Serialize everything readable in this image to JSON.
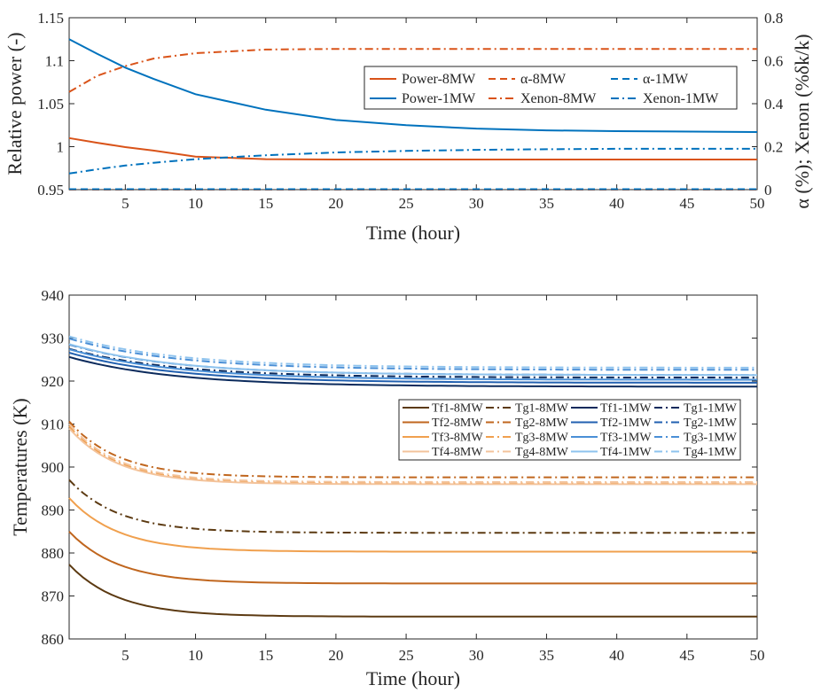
{
  "chart_data": [
    {
      "type": "line",
      "xlabel": "Time (hour)",
      "ylabel": "Relative power (-)",
      "ylabel_right": "α (%); Xenon (%δk/k)",
      "xlim": [
        1,
        50
      ],
      "ylim": [
        0.95,
        1.15
      ],
      "ylim_right": [
        0,
        0.8
      ],
      "xticks": [
        5,
        10,
        15,
        20,
        25,
        30,
        35,
        40,
        45,
        50
      ],
      "yticks": [
        "0.95",
        "1",
        "1.05",
        "1.1",
        "1.15"
      ],
      "yticks_right": [
        "0",
        "0.2",
        "0.4",
        "0.6",
        "0.8"
      ],
      "legend_position": "top-right",
      "series": [
        {
          "name": "Power-8MW",
          "axis": "left",
          "style": "solid",
          "color": "#D95319",
          "x": [
            1,
            3,
            5,
            7,
            10,
            15,
            20,
            30,
            40,
            50
          ],
          "y": [
            1.01,
            1.0045,
            0.9995,
            0.9955,
            0.9885,
            0.9855,
            0.985,
            0.985,
            0.985,
            0.985
          ]
        },
        {
          "name": "α-8MW",
          "axis": "left",
          "style": "dashed",
          "color": "#D95319",
          "x": [
            1,
            50
          ],
          "y": [
            0.95,
            0.95
          ]
        },
        {
          "name": "α-1MW",
          "axis": "left",
          "style": "dashed",
          "color": "#0072BD",
          "x": [
            1,
            50
          ],
          "y": [
            0.9505,
            0.9505
          ]
        },
        {
          "name": "Power-1MW",
          "axis": "left",
          "style": "solid",
          "color": "#0072BD",
          "x": [
            1,
            3,
            5,
            7,
            10,
            15,
            20,
            25,
            30,
            35,
            40,
            50
          ],
          "y": [
            1.125,
            1.108,
            1.092,
            1.079,
            1.061,
            1.043,
            1.031,
            1.025,
            1.021,
            1.019,
            1.018,
            1.017
          ]
        },
        {
          "name": "Xenon-8MW",
          "axis": "right",
          "style": "dashdot",
          "color": "#D95319",
          "x": [
            1,
            3,
            5,
            7,
            10,
            15,
            20,
            25,
            30,
            40,
            50
          ],
          "y": [
            0.455,
            0.53,
            0.575,
            0.61,
            0.635,
            0.652,
            0.655,
            0.655,
            0.655,
            0.655,
            0.655
          ]
        },
        {
          "name": "Xenon-1MW",
          "axis": "right",
          "style": "dashdot",
          "color": "#0072BD",
          "x": [
            1,
            3,
            5,
            7,
            10,
            15,
            20,
            25,
            30,
            35,
            40,
            45,
            50
          ],
          "y": [
            0.075,
            0.095,
            0.112,
            0.125,
            0.142,
            0.16,
            0.173,
            0.18,
            0.185,
            0.188,
            0.19,
            0.19,
            0.19
          ]
        }
      ],
      "legend_order": [
        0,
        1,
        2,
        3,
        4,
        5
      ]
    },
    {
      "type": "line",
      "xlabel": "Time (hour)",
      "ylabel": "Temperatures (K)",
      "xlim": [
        1,
        50
      ],
      "ylim": [
        860,
        940
      ],
      "xticks": [
        5,
        10,
        15,
        20,
        25,
        30,
        35,
        40,
        45,
        50
      ],
      "yticks": [
        "860",
        "870",
        "880",
        "890",
        "900",
        "910",
        "920",
        "930",
        "940"
      ],
      "legend_position": "right",
      "series": [
        {
          "name": "Tf1-8MW",
          "style": "solid",
          "color": "#5C3A12",
          "start": 877.3,
          "end": 865.2,
          "tau": 3.5
        },
        {
          "name": "Tg1-8MW",
          "style": "dashdot",
          "color": "#5C3A12",
          "start": 897.0,
          "end": 884.7,
          "tau": 3.5
        },
        {
          "name": "Tf1-1MW",
          "style": "solid",
          "color": "#0B2A5C",
          "start": 925.6,
          "end": 918.7,
          "tau": 7.5
        },
        {
          "name": "Tg1-1MW",
          "style": "dashdot",
          "color": "#0B2A5C",
          "start": 927.5,
          "end": 920.8,
          "tau": 7.5
        },
        {
          "name": "Tf2-8MW",
          "style": "solid",
          "color": "#C0661E",
          "start": 885.0,
          "end": 872.9,
          "tau": 3.5
        },
        {
          "name": "Tg2-8MW",
          "style": "dashdot",
          "color": "#C0661E",
          "start": 910.6,
          "end": 897.6,
          "tau": 3.5
        },
        {
          "name": "Tf2-1MW",
          "style": "solid",
          "color": "#2160B0",
          "start": 926.6,
          "end": 919.6,
          "tau": 7.5
        },
        {
          "name": "Tg2-1MW",
          "style": "dashdot",
          "color": "#2160B0",
          "start": 928.5,
          "end": 921.4,
          "tau": 7.5
        },
        {
          "name": "Tf3-8MW",
          "style": "solid",
          "color": "#F0A04E",
          "start": 892.8,
          "end": 880.3,
          "tau": 3.5
        },
        {
          "name": "Tg3-8MW",
          "style": "dashdot",
          "color": "#F0A04E",
          "start": 909.5,
          "end": 896.2,
          "tau": 3.5
        },
        {
          "name": "Tf3-1MW",
          "style": "solid",
          "color": "#4A8FD6",
          "start": 927.4,
          "end": 920.3,
          "tau": 7.5
        },
        {
          "name": "Tg3-1MW",
          "style": "dashdot",
          "color": "#4A8FD6",
          "start": 929.9,
          "end": 922.6,
          "tau": 7.5
        },
        {
          "name": "Tf4-8MW",
          "style": "solid",
          "color": "#F3C39B",
          "start": 909.0,
          "end": 896.0,
          "tau": 3.5
        },
        {
          "name": "Tg4-8MW",
          "style": "dashdot",
          "color": "#F3C39B",
          "start": 910.0,
          "end": 896.5,
          "tau": 3.5
        },
        {
          "name": "Tf4-1MW",
          "style": "solid",
          "color": "#8EC3EE",
          "start": 928.6,
          "end": 921.4,
          "tau": 7.5
        },
        {
          "name": "Tg4-1MW",
          "style": "dashdot",
          "color": "#8EC3EE",
          "start": 930.4,
          "end": 923.1,
          "tau": 7.5
        }
      ]
    }
  ]
}
